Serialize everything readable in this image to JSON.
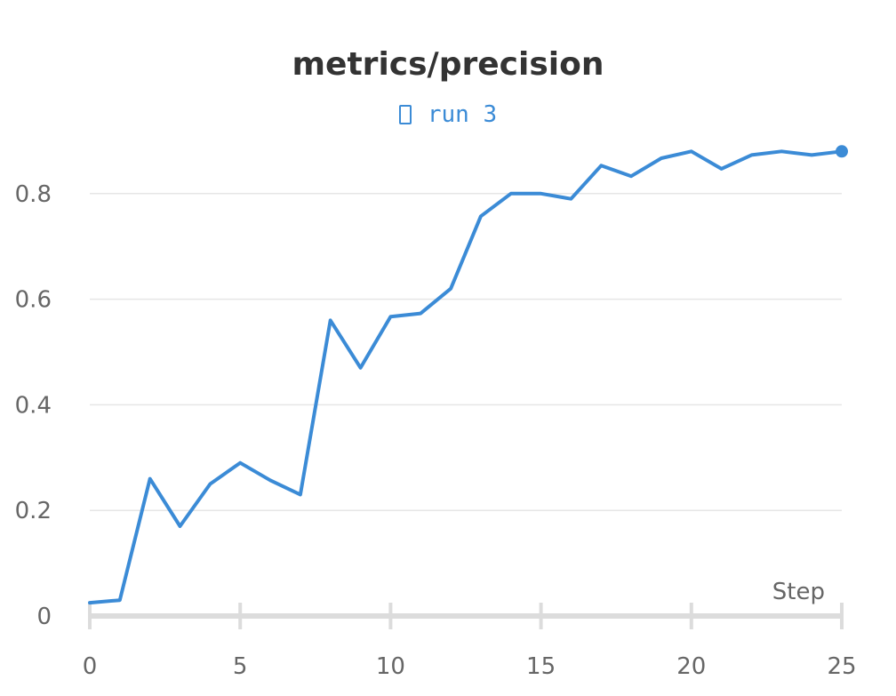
{
  "chart_data": {
    "type": "line",
    "title": "metrics/precision",
    "xlabel": "Step",
    "ylabel": "",
    "xlim": [
      0,
      25
    ],
    "ylim": [
      0,
      0.9
    ],
    "x_ticks": [
      0,
      5,
      10,
      15,
      20,
      25
    ],
    "y_ticks": [
      0,
      0.2,
      0.4,
      0.6,
      0.8
    ],
    "y_tick_labels": [
      "0",
      "0.2",
      "0.4",
      "0.6",
      "0.8"
    ],
    "grid": "horizontal",
    "legend_placement": "top-center",
    "series": [
      {
        "name": "run 3",
        "color": "#3b8bd6",
        "x": [
          0,
          1,
          2,
          3,
          4,
          5,
          6,
          7,
          8,
          9,
          10,
          11,
          12,
          13,
          14,
          15,
          16,
          17,
          18,
          19,
          20,
          21,
          22,
          23,
          24,
          25
        ],
        "y": [
          0.025,
          0.03,
          0.26,
          0.17,
          0.25,
          0.29,
          0.257,
          0.23,
          0.56,
          0.47,
          0.567,
          0.573,
          0.62,
          0.757,
          0.8,
          0.8,
          0.79,
          0.853,
          0.833,
          0.867,
          0.88,
          0.847,
          0.873,
          0.88,
          0.873,
          0.88
        ]
      }
    ]
  }
}
